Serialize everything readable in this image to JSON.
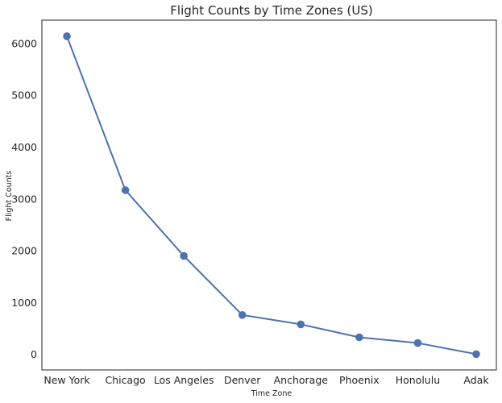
{
  "chart_data": {
    "type": "line",
    "title": "Flight Counts by Time Zones (US)",
    "xlabel": "Time Zone",
    "ylabel": "Flight Counts",
    "categories": [
      "New York",
      "Chicago",
      "Los Angeles",
      "Denver",
      "Anchorage",
      "Phoenix",
      "Honolulu",
      "Adak"
    ],
    "values": [
      6140,
      3170,
      1900,
      760,
      580,
      330,
      220,
      5
    ],
    "ylim": [
      -300,
      6450
    ],
    "yticks": [
      0,
      1000,
      2000,
      3000,
      4000,
      5000,
      6000
    ],
    "ytick_labels": [
      "0",
      "1000",
      "2000",
      "3000",
      "4000",
      "5000",
      "6000"
    ],
    "grid": false,
    "line_color": "#4c72b0"
  }
}
